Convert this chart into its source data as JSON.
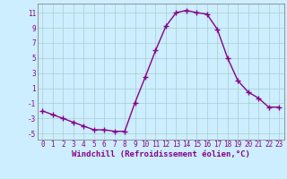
{
  "x": [
    0,
    1,
    2,
    3,
    4,
    5,
    6,
    7,
    8,
    9,
    10,
    11,
    12,
    13,
    14,
    15,
    16,
    17,
    18,
    19,
    20,
    21,
    22,
    23
  ],
  "y": [
    -2.0,
    -2.5,
    -3.0,
    -3.5,
    -4.0,
    -4.5,
    -4.5,
    -4.7,
    -4.7,
    -0.9,
    2.5,
    6.0,
    9.2,
    11.0,
    11.3,
    11.0,
    10.8,
    8.8,
    5.0,
    2.0,
    0.5,
    -0.3,
    -1.5,
    -1.5
  ],
  "line_color": "#880088",
  "marker": "+",
  "marker_size": 4,
  "line_width": 1.0,
  "background_color": "#cceeff",
  "grid_color": "#aacccc",
  "xlabel": "Windchill (Refroidissement éolien,°C)",
  "xlim": [
    -0.5,
    23.5
  ],
  "ylim": [
    -5.8,
    12.2
  ],
  "yticks": [
    -5,
    -3,
    -1,
    1,
    3,
    5,
    7,
    9,
    11
  ],
  "xticks": [
    0,
    1,
    2,
    3,
    4,
    5,
    6,
    7,
    8,
    9,
    10,
    11,
    12,
    13,
    14,
    15,
    16,
    17,
    18,
    19,
    20,
    21,
    22,
    23
  ],
  "tick_color": "#880088",
  "label_color": "#880088",
  "xlabel_fontsize": 6.5,
  "tick_fontsize": 5.5,
  "axis_color": "#888888"
}
